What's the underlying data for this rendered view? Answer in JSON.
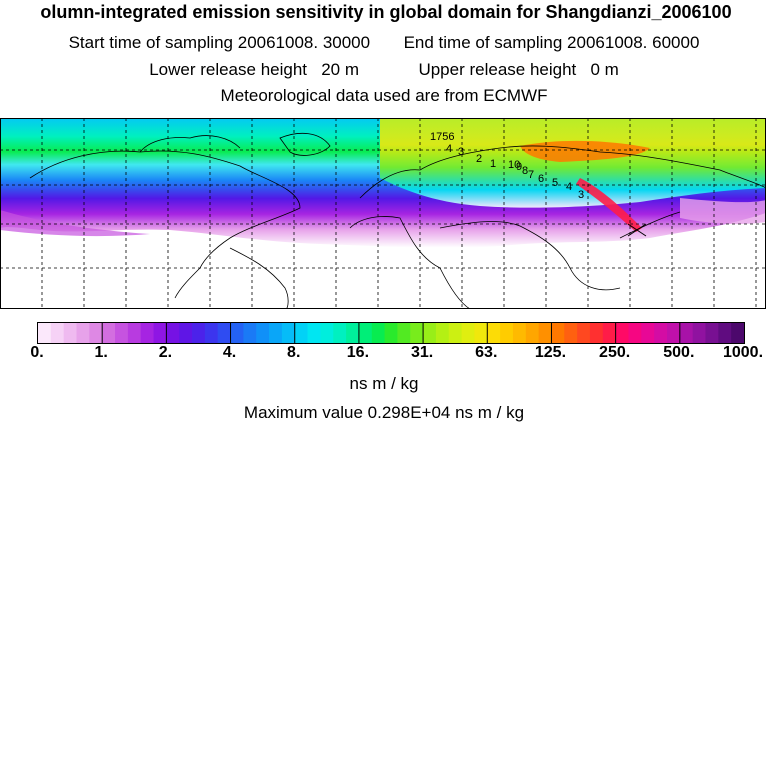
{
  "title": "olumn-integrated emission sensitivity in global domain for Shangdianzi_2006100",
  "sampling": {
    "start_label": "Start time of sampling",
    "start_value": "20061008. 30000",
    "end_label": "End time of sampling",
    "end_value": "20061008. 60000"
  },
  "release": {
    "lower_label": "Lower release height",
    "lower_value": "20 m",
    "upper_label": "Upper release height",
    "upper_value": "0 m"
  },
  "meteo": "Meteorological data used are from ECMWF",
  "colorbar": {
    "tick_labels": [
      "0.",
      "1.",
      "2.",
      "4.",
      "8.",
      "16.",
      "31.",
      "63.",
      "125.",
      "250.",
      "500.",
      "1000."
    ],
    "colors": [
      "#fbe8fb",
      "#f6d2f6",
      "#efbaf0",
      "#e7a2ea",
      "#de88e4",
      "#d36ee0",
      "#c653e0",
      "#b83be0",
      "#a624e2",
      "#8f16e4",
      "#7612e4",
      "#5f16e6",
      "#4c22ea",
      "#3c35ee",
      "#2f4cf2",
      "#2462f4",
      "#1a7af6",
      "#1090f8",
      "#0aa6f8",
      "#06bcf8",
      "#02d2f6",
      "#00e6f2",
      "#00eedd",
      "#00f0c0",
      "#00f09c",
      "#00ee78",
      "#08ec50",
      "#2aea2c",
      "#52ea22",
      "#78ec1c",
      "#98ee18",
      "#b4f014",
      "#ccf012",
      "#e0ee10",
      "#f0e80c",
      "#fcdc06",
      "#ffcc00",
      "#ffba00",
      "#ffa600",
      "#ff9000",
      "#ff7800",
      "#ff6010",
      "#ff4820",
      "#ff3030",
      "#ff1c48",
      "#ff0a66",
      "#f60682",
      "#e80896",
      "#d40ca4",
      "#c010aa",
      "#a812a8",
      "#9012a0",
      "#781092",
      "#600c80",
      "#4c086c"
    ]
  },
  "units": "ns m / kg",
  "max_value": "Maximum value  0.298E+04 ns m / kg",
  "map": {
    "contour_labels": [
      "1756",
      "4",
      "3",
      "2",
      "1",
      "10",
      "9",
      "8",
      "7",
      "6",
      "5",
      "4",
      "3"
    ]
  }
}
